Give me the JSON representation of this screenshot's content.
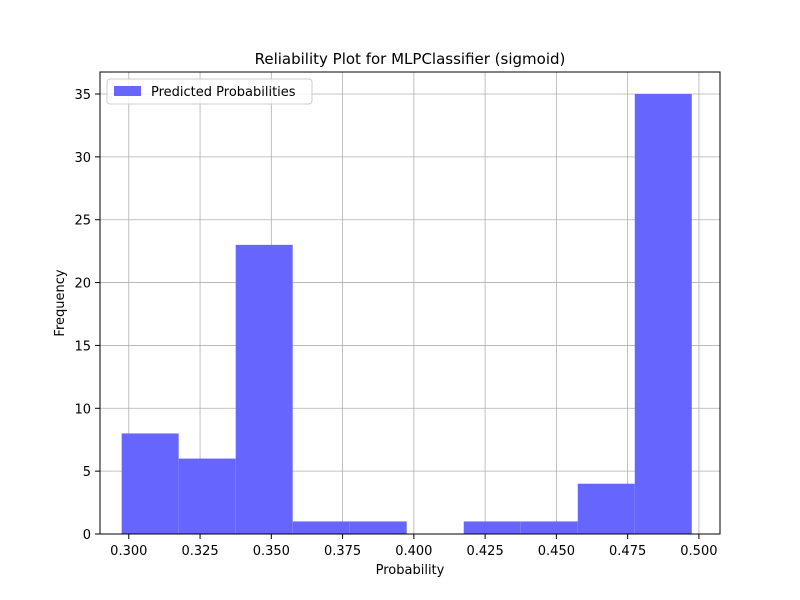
{
  "chart_data": {
    "type": "bar",
    "title": "Reliability Plot for MLPClassifier (sigmoid)",
    "xlabel": "Probability",
    "ylabel": "Frequency",
    "xlim": [
      0.2899,
      0.5074
    ],
    "ylim": [
      0,
      36.75
    ],
    "xticks": [
      0.3,
      0.325,
      0.35,
      0.375,
      0.4,
      0.425,
      0.45,
      0.475,
      0.5
    ],
    "xtick_labels": [
      "0.300",
      "0.325",
      "0.350",
      "0.375",
      "0.400",
      "0.425",
      "0.450",
      "0.475",
      "0.500"
    ],
    "yticks": [
      0,
      5,
      10,
      15,
      20,
      25,
      30,
      35
    ],
    "ytick_labels": [
      "0",
      "5",
      "10",
      "15",
      "20",
      "25",
      "30",
      "35"
    ],
    "bin_edges": [
      0.2975,
      0.3175,
      0.3375,
      0.3575,
      0.3775,
      0.3975,
      0.4175,
      0.4375,
      0.4575,
      0.4775,
      0.4975
    ],
    "values": [
      8,
      6,
      23,
      1,
      1,
      0,
      1,
      1,
      4,
      35
    ],
    "grid": true,
    "legend": {
      "position": "upper-left",
      "entries": [
        "Predicted Probabilities"
      ]
    },
    "colors": {
      "bar": "#6666ff",
      "grid": "#b0b0b0",
      "axis": "#000000"
    }
  }
}
